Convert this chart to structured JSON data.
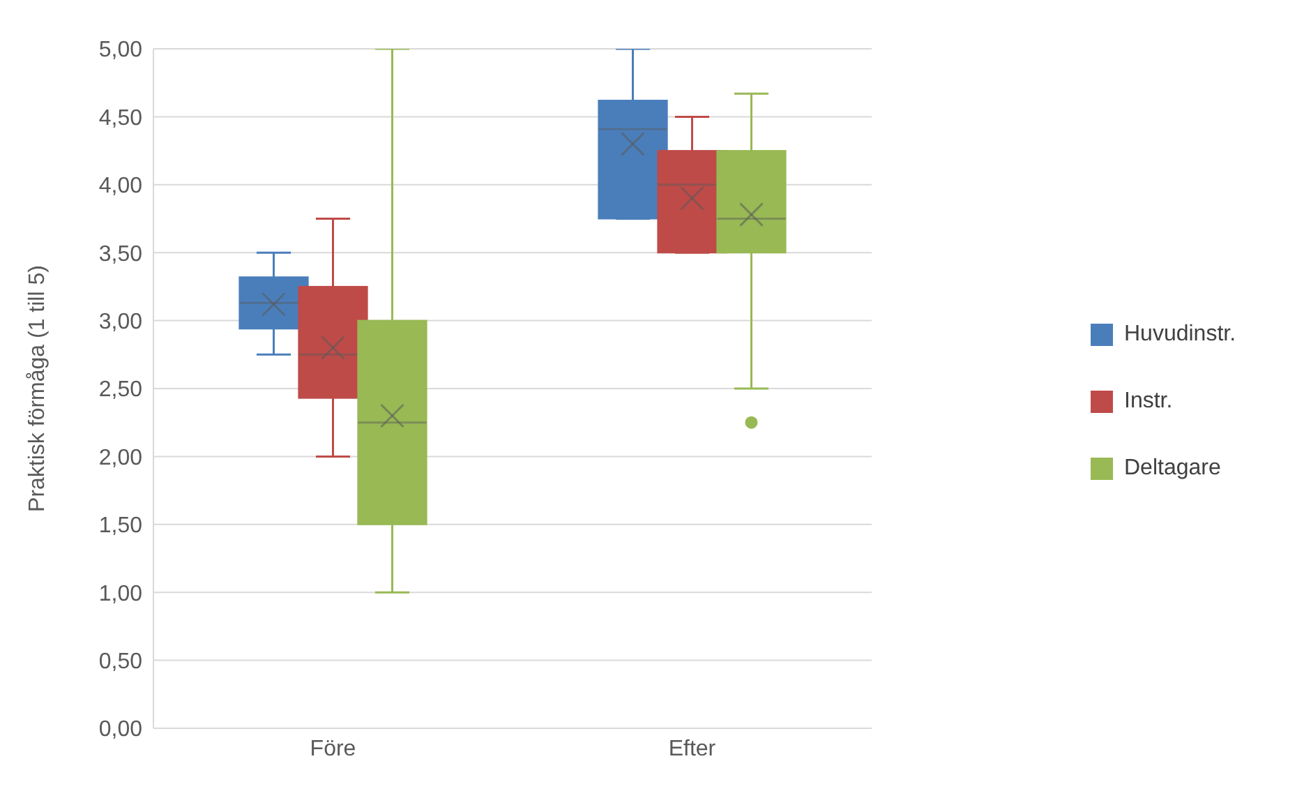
{
  "chart_data": {
    "type": "box",
    "ylabel": "Praktisk förmåga (1 till 5)",
    "categories": [
      "Före",
      "Efter"
    ],
    "ylim": [
      0,
      5
    ],
    "yticks": [
      {
        "value": 0,
        "label": "0,00"
      },
      {
        "value": 0.5,
        "label": "0,50"
      },
      {
        "value": 1,
        "label": "1,00"
      },
      {
        "value": 1.5,
        "label": "1,50"
      },
      {
        "value": 2,
        "label": "2,00"
      },
      {
        "value": 2.5,
        "label": "2,50"
      },
      {
        "value": 3,
        "label": "3,00"
      },
      {
        "value": 3.5,
        "label": "3,50"
      },
      {
        "value": 4,
        "label": "4,00"
      },
      {
        "value": 4.5,
        "label": "4,50"
      },
      {
        "value": 5,
        "label": "5,00"
      }
    ],
    "grid": "y",
    "legend": "right",
    "series": [
      {
        "name": "Huvudinstr.",
        "color": "#4a7ebb",
        "boxes": [
          {
            "low": 2.75,
            "q1": 2.94,
            "median": 3.13,
            "q3": 3.32,
            "high": 3.5,
            "mean": 3.12
          },
          {
            "low": 3.75,
            "q1": 3.75,
            "median": 4.41,
            "q3": 4.62,
            "high": 5,
            "mean": 4.3
          }
        ]
      },
      {
        "name": "Instr.",
        "color": "#be4b48",
        "boxes": [
          {
            "low": 2,
            "q1": 2.43,
            "median": 2.75,
            "q3": 3.25,
            "high": 3.75,
            "mean": 2.8
          },
          {
            "low": 3.5,
            "q1": 3.5,
            "median": 4,
            "q3": 4.25,
            "high": 4.5,
            "mean": 3.9
          }
        ]
      },
      {
        "name": "Deltagare",
        "color": "#98b954",
        "boxes": [
          {
            "low": 1,
            "q1": 1.5,
            "median": 2.25,
            "q3": 3,
            "high": 5,
            "mean": 2.3
          },
          {
            "low": 2.5,
            "q1": 3.5,
            "median": 3.75,
            "q3": 4.25,
            "high": 4.67,
            "mean": 3.78,
            "outliers": [
              2.25
            ]
          }
        ]
      }
    ]
  }
}
